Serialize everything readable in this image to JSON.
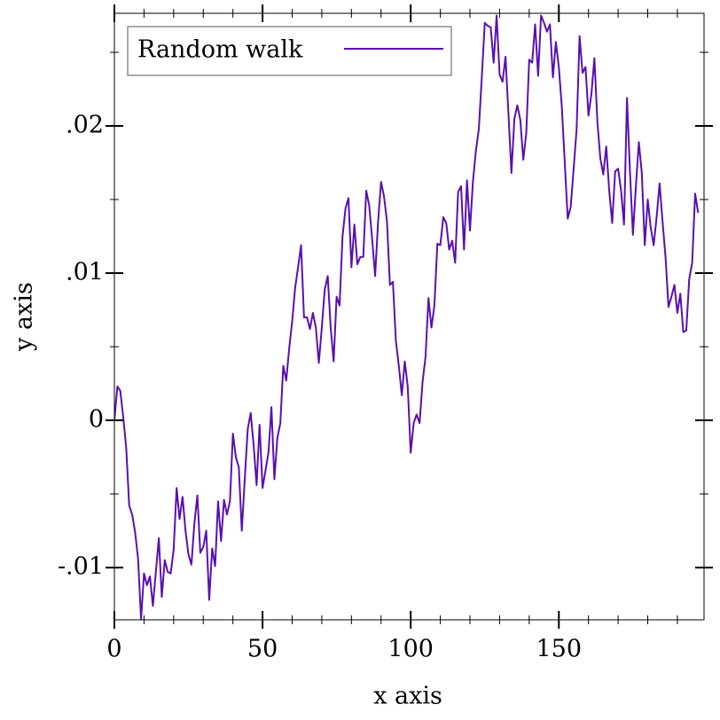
{
  "chart_data": {
    "type": "line",
    "xlabel": "x axis",
    "ylabel": "y axis",
    "xlim": [
      0,
      199
    ],
    "ylim": [
      -0.01355,
      0.02765
    ],
    "xticks": [
      0,
      50,
      100,
      150
    ],
    "yticks": [
      {
        "value": -0.01,
        "label": "-.01"
      },
      0,
      {
        "value": 0.01,
        "label": ".01"
      },
      {
        "value": 0.02,
        "label": ".02"
      }
    ],
    "xminorticks": [
      10,
      20,
      30,
      40,
      60,
      70,
      80,
      90,
      110,
      120,
      130,
      140,
      160,
      170,
      180,
      190
    ],
    "yminorticks": [
      -0.005,
      0.005,
      0.015,
      0.025
    ],
    "legend": "top-left",
    "x": [
      0,
      1,
      2,
      3,
      4,
      5,
      6,
      7,
      8,
      9,
      10,
      11,
      12,
      13,
      14,
      15,
      16,
      17,
      18,
      19,
      20,
      21,
      22,
      23,
      24,
      25,
      26,
      27,
      28,
      29,
      30,
      31,
      32,
      33,
      34,
      35,
      36,
      37,
      38,
      39,
      40,
      41,
      42,
      43,
      44,
      45,
      46,
      47,
      48,
      49,
      50,
      51,
      52,
      53,
      54,
      55,
      56,
      57,
      58,
      59,
      60,
      61,
      62,
      63,
      64,
      65,
      66,
      67,
      68,
      69,
      70,
      71,
      72,
      73,
      74,
      75,
      76,
      77,
      78,
      79,
      80,
      81,
      82,
      83,
      84,
      85,
      86,
      87,
      88,
      89,
      90,
      91,
      92,
      93,
      94,
      95,
      96,
      97,
      98,
      99,
      100,
      101,
      102,
      103,
      104,
      105,
      106,
      107,
      108,
      109,
      110,
      111,
      112,
      113,
      114,
      115,
      116,
      117,
      118,
      119,
      120,
      121,
      122,
      123,
      124,
      125,
      126,
      127,
      128,
      129,
      130,
      131,
      132,
      133,
      134,
      135,
      136,
      137,
      138,
      139,
      140,
      141,
      142,
      143,
      144,
      145,
      146,
      147,
      148,
      149,
      150,
      151,
      152,
      153,
      154,
      155,
      156,
      157,
      158,
      159,
      160,
      161,
      162,
      163,
      164,
      165,
      166,
      167,
      168,
      169,
      170,
      171,
      172,
      173,
      174,
      175,
      176,
      177,
      178,
      179,
      180,
      181,
      182,
      183,
      184,
      185,
      186,
      187,
      188,
      189,
      190,
      191,
      192,
      193,
      194,
      195,
      196,
      197
    ],
    "series": [
      {
        "name": "Random walk",
        "color": "#5a0fb0",
        "values": [
          0,
          0.0023,
          0.002,
          0.0002,
          -0.0019,
          -0.0058,
          -0.0064,
          -0.0076,
          -0.0094,
          -0.0135,
          -0.0104,
          -0.0112,
          -0.0106,
          -0.0126,
          -0.0103,
          -0.008,
          -0.012,
          -0.0095,
          -0.0103,
          -0.0104,
          -0.0088,
          -0.0046,
          -0.0067,
          -0.0052,
          -0.0075,
          -0.0091,
          -0.0098,
          -0.007,
          -0.0051,
          -0.009,
          -0.0086,
          -0.0075,
          -0.0122,
          -0.0087,
          -0.0099,
          -0.0055,
          -0.0082,
          -0.0054,
          -0.0064,
          -0.0055,
          -0.0009,
          -0.0025,
          -0.0032,
          -0.0075,
          -0.004,
          -0.0006,
          0.0005,
          -0.0017,
          -0.0044,
          -0.0003,
          -0.0046,
          -0.0034,
          -0.0022,
          0.0009,
          -0.004,
          -0.0012,
          -0.0002,
          0.0037,
          0.0027,
          0.0049,
          0.0067,
          0.009,
          0.0104,
          0.0119,
          0.007,
          0.007,
          0.0062,
          0.0073,
          0.0063,
          0.0039,
          0.0063,
          0.0089,
          0.0098,
          0.0063,
          0.004,
          0.0084,
          0.0078,
          0.0125,
          0.0144,
          0.0151,
          0.0104,
          0.0133,
          0.0106,
          0.0111,
          0.0111,
          0.0156,
          0.0146,
          0.0123,
          0.0098,
          0.0135,
          0.0162,
          0.0152,
          0.0135,
          0.0092,
          0.0094,
          0.0054,
          0.0037,
          0.0017,
          0.004,
          0.0023,
          -0.0022,
          -0.0002,
          0.0004,
          -0.0002,
          0.0026,
          0.0043,
          0.0083,
          0.0063,
          0.0078,
          0.012,
          0.0119,
          0.0138,
          0.0134,
          0.0116,
          0.0122,
          0.0107,
          0.0155,
          0.0159,
          0.0116,
          0.0163,
          0.0129,
          0.0162,
          0.0183,
          0.0198,
          0.0233,
          0.027,
          0.0268,
          0.0267,
          0.0243,
          0.0275,
          0.0235,
          0.023,
          0.0247,
          0.0208,
          0.0168,
          0.0205,
          0.0214,
          0.0204,
          0.0177,
          0.0195,
          0.0245,
          0.0243,
          0.0269,
          0.0234,
          0.0275,
          0.027,
          0.0264,
          0.0269,
          0.0233,
          0.0257,
          0.024,
          0.0213,
          0.0175,
          0.0137,
          0.0145,
          0.0171,
          0.0198,
          0.0261,
          0.0236,
          0.024,
          0.0207,
          0.0222,
          0.0246,
          0.0203,
          0.0178,
          0.0167,
          0.0186,
          0.0156,
          0.0134,
          0.0169,
          0.0171,
          0.0156,
          0.0133,
          0.0219,
          0.0169,
          0.0126,
          0.0159,
          0.0189,
          0.0168,
          0.0119,
          0.015,
          0.0131,
          0.0119,
          0.0138,
          0.0161,
          0.0135,
          0.0111,
          0.0077,
          0.0084,
          0.0092,
          0.0073,
          0.0086,
          0.006,
          0.0061,
          0.0096,
          0.0107,
          0.0154,
          0.0141
        ]
      }
    ]
  }
}
